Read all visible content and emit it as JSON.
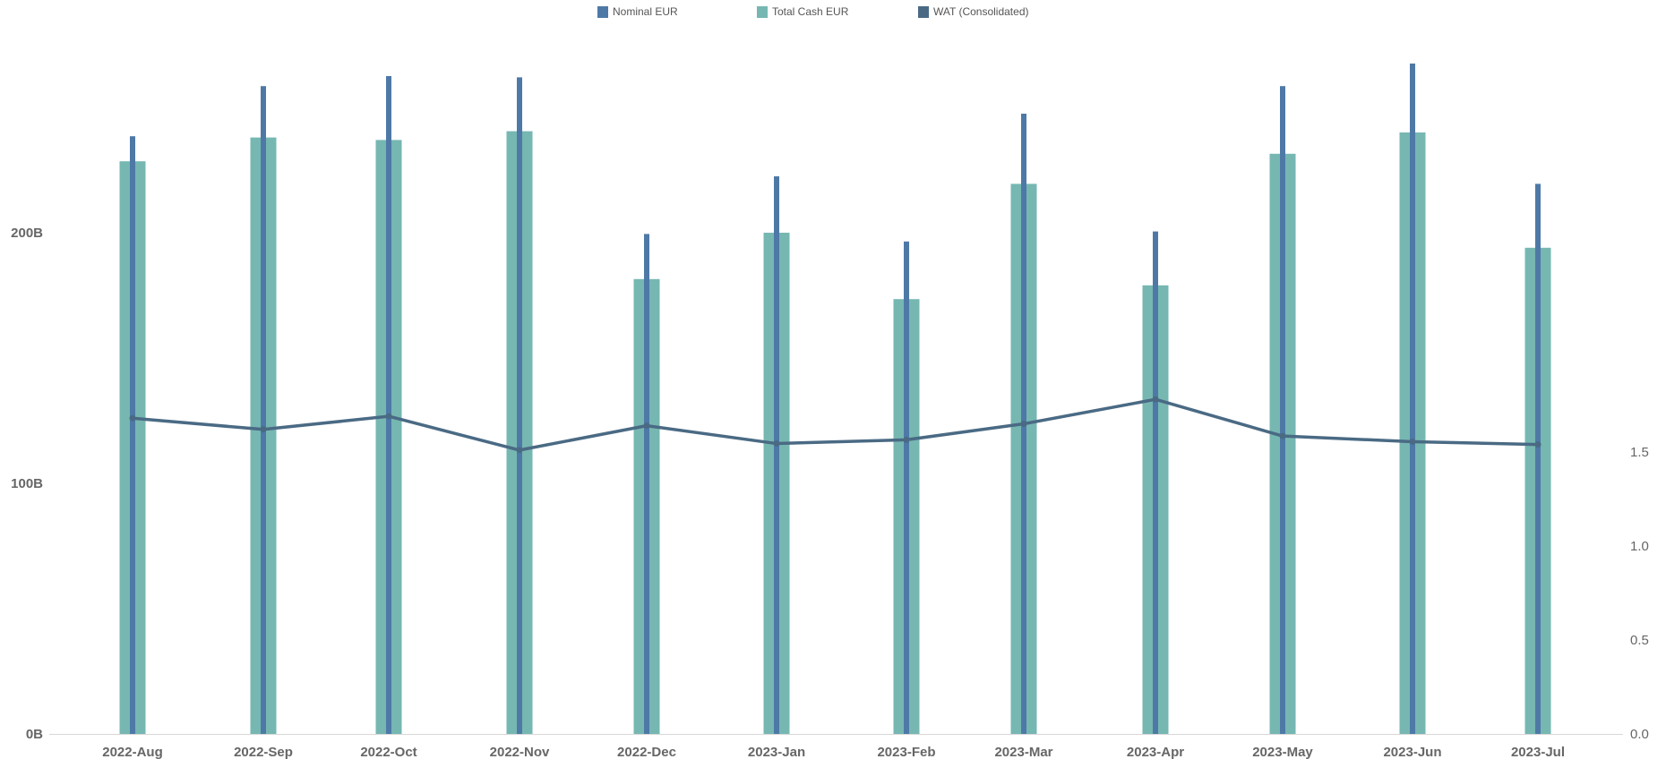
{
  "chart_data": {
    "type": "bar",
    "categories": [
      "2022-Aug",
      "2022-Sep",
      "2022-Oct",
      "2022-Nov",
      "2022-Dec",
      "2023-Jan",
      "2023-Feb",
      "2023-Mar",
      "2023-Apr",
      "2023-May",
      "2023-Jun",
      "2023-Jul"
    ],
    "series": [
      {
        "name": "Nominal EUR",
        "type": "bar",
        "axis": "left",
        "color": "#4e79a7",
        "values": [
          238.5,
          258.5,
          262.5,
          262.0,
          199.5,
          222.5,
          196.5,
          247.5,
          200.5,
          258.5,
          267.5,
          219.5
        ]
      },
      {
        "name": "Total Cash EUR",
        "type": "bar",
        "axis": "left",
        "color": "#76b7b2",
        "values": [
          228.5,
          238.0,
          237.0,
          240.5,
          181.5,
          200.0,
          173.5,
          219.5,
          179.0,
          231.5,
          240.0,
          194.0
        ]
      },
      {
        "name": "WAT (Consolidated)",
        "type": "line",
        "axis": "right",
        "color": "#4a6a84",
        "values": [
          1.68,
          1.62,
          1.69,
          1.51,
          1.64,
          1.545,
          1.565,
          1.65,
          1.78,
          1.585,
          1.555,
          1.54
        ]
      }
    ],
    "left_axis": {
      "ticks": [
        0,
        100,
        200
      ],
      "tick_labels": [
        "0B",
        "100B",
        "200B"
      ],
      "range": [
        0,
        270
      ]
    },
    "right_axis": {
      "ticks": [
        0.0,
        0.5,
        1.0,
        1.5
      ],
      "tick_labels": [
        "0.0",
        "0.5",
        "1.0",
        "1.5"
      ],
      "range": [
        0,
        1.9
      ]
    },
    "grid": false,
    "legend_position": "top-center"
  },
  "legend": {
    "items": [
      {
        "label": "Nominal EUR",
        "color": "#4e79a7"
      },
      {
        "label": "Total Cash EUR",
        "color": "#76b7b2"
      },
      {
        "label": "WAT (Consolidated)",
        "color": "#4a6a84"
      }
    ]
  }
}
